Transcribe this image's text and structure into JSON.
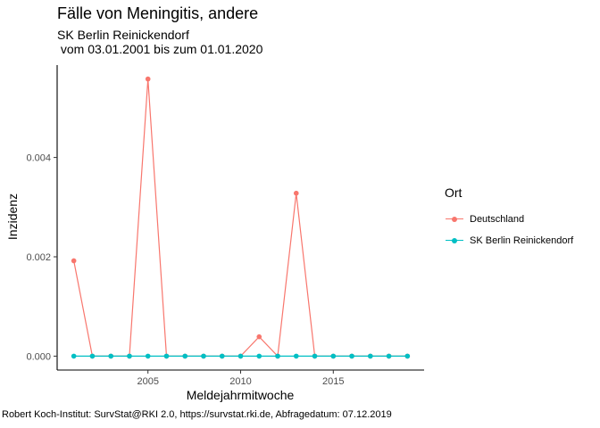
{
  "title": "Fälle von Meningitis, andere",
  "subtitle": "SK Berlin Reinickendorf\n vom 03.01.2001 bis zum 01.01.2020",
  "caption": "Robert Koch-Institut: SurvStat@RKI 2.0, https://survstat.rki.de, Abfragedatum: 07.12.2019",
  "legend": {
    "title": "Ort",
    "items": [
      {
        "label": "Deutschland",
        "color": "#F8766D"
      },
      {
        "label": "SK Berlin Reinickendorf",
        "color": "#00BFC4"
      }
    ]
  },
  "chart_data": {
    "type": "line",
    "xlabel": "Meldejahrmitwoche",
    "ylabel": "Inzidenz",
    "x": [
      2001,
      2002,
      2003,
      2004,
      2005,
      2006,
      2007,
      2008,
      2009,
      2010,
      2011,
      2012,
      2013,
      2014,
      2015,
      2016,
      2017,
      2018,
      2019
    ],
    "xlim": [
      2000.1,
      2019.9
    ],
    "ylim": [
      -0.00028,
      0.00586
    ],
    "xticks": [
      2005,
      2010,
      2015
    ],
    "yticks": [
      0.0,
      0.002,
      0.004
    ],
    "ytick_labels": [
      "0.000",
      "0.002",
      "0.004"
    ],
    "grid": false,
    "legend_position": "right",
    "series": [
      {
        "name": "Deutschland",
        "color": "#F8766D",
        "values": [
          0.00192,
          0,
          0,
          0,
          0.00558,
          0,
          0,
          0,
          0,
          0,
          0.00039,
          0,
          0.00328,
          0,
          0,
          0,
          0,
          0,
          0
        ]
      },
      {
        "name": "SK Berlin Reinickendorf",
        "color": "#00BFC4",
        "values": [
          0,
          0,
          0,
          0,
          0,
          0,
          0,
          0,
          0,
          0,
          0,
          0,
          0,
          0,
          0,
          0,
          0,
          0,
          0
        ]
      }
    ]
  }
}
